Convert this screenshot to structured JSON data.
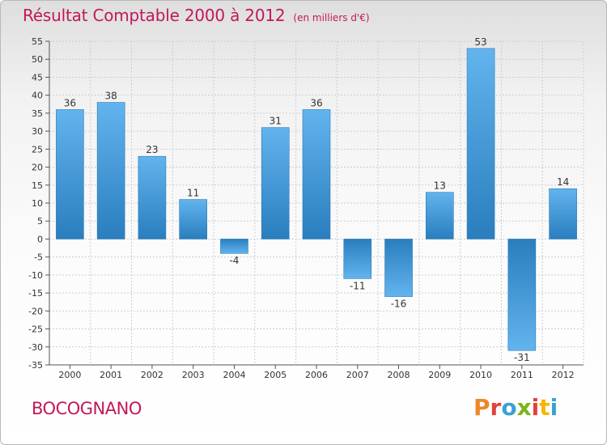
{
  "header": {
    "title": "Résultat Comptable 2000 à 2012",
    "subtitle": "(en milliers d'€)"
  },
  "footer": {
    "place": "BOCOGNANO",
    "brand": "Proxiti",
    "brand_colors": [
      "#f0862a",
      "#e2413b",
      "#3aa0d8",
      "#7ab51d",
      "#e2413b",
      "#f7b500",
      "#3aa0d8"
    ]
  },
  "colors": {
    "bar_light": "#5fb0ea",
    "bar_dark": "#2a7fbf",
    "axis": "#444444",
    "grid": "#cfcfcf",
    "accent": "#c2185b"
  },
  "chart_data": {
    "type": "bar",
    "title": "Résultat Comptable 2000 à 2012",
    "unit": "(en milliers d'€)",
    "xlabel": "",
    "ylabel": "",
    "categories": [
      "2000",
      "2001",
      "2002",
      "2003",
      "2004",
      "2005",
      "2006",
      "2007",
      "2008",
      "2009",
      "2010",
      "2011",
      "2012"
    ],
    "values": [
      36,
      38,
      23,
      11,
      -4,
      31,
      36,
      -11,
      -16,
      13,
      53,
      -31,
      14
    ],
    "labels": [
      "36",
      "38",
      "23",
      "11",
      "-4",
      "31",
      "36",
      "-11",
      "-16",
      "13",
      "53",
      "-31",
      "14"
    ],
    "ylim": [
      -35,
      55
    ],
    "yticks": [
      55,
      50,
      45,
      40,
      35,
      30,
      25,
      20,
      15,
      10,
      5,
      0,
      -5,
      -10,
      -15,
      -20,
      -25,
      -30,
      -35
    ],
    "grid": true,
    "legend": "none"
  }
}
